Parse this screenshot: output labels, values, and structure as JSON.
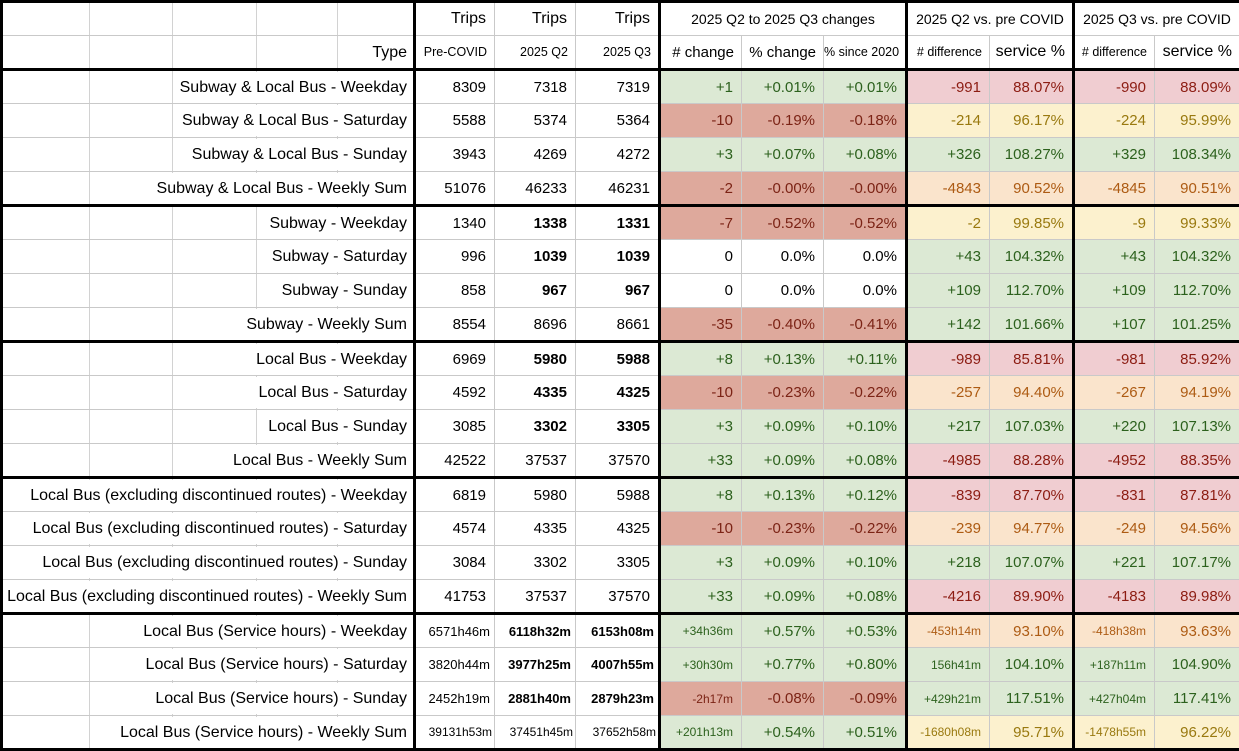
{
  "header": {
    "trips": "Trips",
    "type": "Type",
    "group_change": "2025 Q2 to 2025 Q3 changes",
    "group_q2_pre": "2025 Q2 vs. pre COVID",
    "group_q3_pre": "2025 Q3 vs. pre COVID",
    "sub": [
      "Pre-COVID",
      "2025 Q2",
      "2025 Q3",
      "# change",
      "% change",
      "% since 2020",
      "# difference",
      "service %",
      "# difference",
      "service %"
    ]
  },
  "colors": {
    "positive_bg": "#dce9d4",
    "positive_text": "#2c611d",
    "negative_bg": "#dea99c",
    "negative_text": "#7b2315",
    "below90_bg": "#f0cdd1",
    "below90_text": "#8c1c12",
    "near95_bg": "#fae4cc",
    "near95_text": "#ad5b13",
    "near100_bg": "#fcf1ce",
    "near100_text": "#99790f",
    "gridline": "#c9c9c9",
    "group_border": "#000000"
  },
  "rows": [
    {
      "label": "Subway & Local Bus - Weekday",
      "pre": "8309",
      "q2": "7318",
      "q3": "7319",
      "bold": false,
      "hours": false,
      "sum": false,
      "chg": [
        "+1",
        "+0.01%",
        "+0.01%"
      ],
      "chgc": "green",
      "d2": [
        "-991",
        "88.07%"
      ],
      "d2c": "pink",
      "d3": [
        "-990",
        "88.09%"
      ],
      "d3c": "pink"
    },
    {
      "label": "Subway & Local Bus - Saturday",
      "pre": "5588",
      "q2": "5374",
      "q3": "5364",
      "bold": false,
      "hours": false,
      "sum": false,
      "chg": [
        "-10",
        "-0.19%",
        "-0.18%"
      ],
      "chgc": "salmon",
      "d2": [
        "-214",
        "96.17%"
      ],
      "d2c": "yellow",
      "d3": [
        "-224",
        "95.99%"
      ],
      "d3c": "yellow"
    },
    {
      "label": "Subway & Local Bus - Sunday",
      "pre": "3943",
      "q2": "4269",
      "q3": "4272",
      "bold": false,
      "hours": false,
      "sum": false,
      "chg": [
        "+3",
        "+0.07%",
        "+0.08%"
      ],
      "chgc": "green",
      "d2": [
        "+326",
        "108.27%"
      ],
      "d2c": "green",
      "d3": [
        "+329",
        "108.34%"
      ],
      "d3c": "green"
    },
    {
      "label": "Subway & Local Bus - Weekly Sum",
      "pre": "51076",
      "q2": "46233",
      "q3": "46231",
      "bold": false,
      "hours": false,
      "sum": false,
      "chg": [
        "-2",
        "-0.00%",
        "-0.00%"
      ],
      "chgc": "salmon",
      "d2": [
        "-4843",
        "90.52%"
      ],
      "d2c": "orange",
      "d3": [
        "-4845",
        "90.51%"
      ],
      "d3c": "orange"
    },
    {
      "label": "Subway - Weekday",
      "pre": "1340",
      "q2": "1338",
      "q3": "1331",
      "bold": true,
      "hours": false,
      "sum": false,
      "chg": [
        "-7",
        "-0.52%",
        "-0.52%"
      ],
      "chgc": "salmon",
      "d2": [
        "-2",
        "99.85%"
      ],
      "d2c": "yellow",
      "d3": [
        "-9",
        "99.33%"
      ],
      "d3c": "yellow"
    },
    {
      "label": "Subway - Saturday",
      "pre": "996",
      "q2": "1039",
      "q3": "1039",
      "bold": true,
      "hours": false,
      "sum": false,
      "chg": [
        "0",
        "0.0%",
        "0.0%"
      ],
      "chgc": "plain",
      "d2": [
        "+43",
        "104.32%"
      ],
      "d2c": "green",
      "d3": [
        "+43",
        "104.32%"
      ],
      "d3c": "green"
    },
    {
      "label": "Subway - Sunday",
      "pre": "858",
      "q2": "967",
      "q3": "967",
      "bold": true,
      "hours": false,
      "sum": false,
      "chg": [
        "0",
        "0.0%",
        "0.0%"
      ],
      "chgc": "plain",
      "d2": [
        "+109",
        "112.70%"
      ],
      "d2c": "green",
      "d3": [
        "+109",
        "112.70%"
      ],
      "d3c": "green"
    },
    {
      "label": "Subway - Weekly Sum",
      "pre": "8554",
      "q2": "8696",
      "q3": "8661",
      "bold": false,
      "hours": false,
      "sum": false,
      "chg": [
        "-35",
        "-0.40%",
        "-0.41%"
      ],
      "chgc": "salmon",
      "d2": [
        "+142",
        "101.66%"
      ],
      "d2c": "green",
      "d3": [
        "+107",
        "101.25%"
      ],
      "d3c": "green"
    },
    {
      "label": "Local Bus - Weekday",
      "pre": "6969",
      "q2": "5980",
      "q3": "5988",
      "bold": true,
      "hours": false,
      "sum": false,
      "chg": [
        "+8",
        "+0.13%",
        "+0.11%"
      ],
      "chgc": "green",
      "d2": [
        "-989",
        "85.81%"
      ],
      "d2c": "pink",
      "d3": [
        "-981",
        "85.92%"
      ],
      "d3c": "pink"
    },
    {
      "label": "Local Bus - Saturday",
      "pre": "4592",
      "q2": "4335",
      "q3": "4325",
      "bold": true,
      "hours": false,
      "sum": false,
      "chg": [
        "-10",
        "-0.23%",
        "-0.22%"
      ],
      "chgc": "salmon",
      "d2": [
        "-257",
        "94.40%"
      ],
      "d2c": "orange",
      "d3": [
        "-267",
        "94.19%"
      ],
      "d3c": "orange"
    },
    {
      "label": "Local Bus - Sunday",
      "pre": "3085",
      "q2": "3302",
      "q3": "3305",
      "bold": true,
      "hours": false,
      "sum": false,
      "chg": [
        "+3",
        "+0.09%",
        "+0.10%"
      ],
      "chgc": "green",
      "d2": [
        "+217",
        "107.03%"
      ],
      "d2c": "green",
      "d3": [
        "+220",
        "107.13%"
      ],
      "d3c": "green"
    },
    {
      "label": "Local Bus - Weekly Sum",
      "pre": "42522",
      "q2": "37537",
      "q3": "37570",
      "bold": false,
      "hours": false,
      "sum": false,
      "chg": [
        "+33",
        "+0.09%",
        "+0.08%"
      ],
      "chgc": "green",
      "d2": [
        "-4985",
        "88.28%"
      ],
      "d2c": "pink",
      "d3": [
        "-4952",
        "88.35%"
      ],
      "d3c": "pink"
    },
    {
      "label": "Local Bus (excluding discontinued routes) - Weekday",
      "pre": "6819",
      "q2": "5980",
      "q3": "5988",
      "bold": false,
      "hours": false,
      "sum": false,
      "chg": [
        "+8",
        "+0.13%",
        "+0.12%"
      ],
      "chgc": "green",
      "d2": [
        "-839",
        "87.70%"
      ],
      "d2c": "pink",
      "d3": [
        "-831",
        "87.81%"
      ],
      "d3c": "pink"
    },
    {
      "label": "Local Bus (excluding discontinued routes) - Saturday",
      "pre": "4574",
      "q2": "4335",
      "q3": "4325",
      "bold": false,
      "hours": false,
      "sum": false,
      "chg": [
        "-10",
        "-0.23%",
        "-0.22%"
      ],
      "chgc": "salmon",
      "d2": [
        "-239",
        "94.77%"
      ],
      "d2c": "orange",
      "d3": [
        "-249",
        "94.56%"
      ],
      "d3c": "orange"
    },
    {
      "label": "Local Bus (excluding discontinued routes) - Sunday",
      "pre": "3084",
      "q2": "3302",
      "q3": "3305",
      "bold": false,
      "hours": false,
      "sum": false,
      "chg": [
        "+3",
        "+0.09%",
        "+0.10%"
      ],
      "chgc": "green",
      "d2": [
        "+218",
        "107.07%"
      ],
      "d2c": "green",
      "d3": [
        "+221",
        "107.17%"
      ],
      "d3c": "green"
    },
    {
      "label": "Local Bus (excluding discontinued routes) - Weekly Sum",
      "pre": "41753",
      "q2": "37537",
      "q3": "37570",
      "bold": false,
      "hours": false,
      "sum": false,
      "chg": [
        "+33",
        "+0.09%",
        "+0.08%"
      ],
      "chgc": "green",
      "d2": [
        "-4216",
        "89.90%"
      ],
      "d2c": "pink",
      "d3": [
        "-4183",
        "89.98%"
      ],
      "d3c": "pink"
    },
    {
      "label": "Local Bus (Service hours) - Weekday",
      "pre": "6571h46m",
      "q2": "6118h32m",
      "q3": "6153h08m",
      "bold": true,
      "hours": true,
      "sum": false,
      "chg": [
        "+34h36m",
        "+0.57%",
        "+0.53%"
      ],
      "chgc": "green",
      "d2": [
        "-453h14m",
        "93.10%"
      ],
      "d2c": "orange",
      "d3": [
        "-418h38m",
        "93.63%"
      ],
      "d3c": "orange"
    },
    {
      "label": "Local Bus (Service hours) - Saturday",
      "pre": "3820h44m",
      "q2": "3977h25m",
      "q3": "4007h55m",
      "bold": true,
      "hours": true,
      "sum": false,
      "chg": [
        "+30h30m",
        "+0.77%",
        "+0.80%"
      ],
      "chgc": "green",
      "d2": [
        "156h41m",
        "104.10%"
      ],
      "d2c": "green",
      "d3": [
        "+187h11m",
        "104.90%"
      ],
      "d3c": "green"
    },
    {
      "label": "Local Bus (Service hours) - Sunday",
      "pre": "2452h19m",
      "q2": "2881h40m",
      "q3": "2879h23m",
      "bold": true,
      "hours": true,
      "sum": false,
      "chg": [
        "-2h17m",
        "-0.08%",
        "-0.09%"
      ],
      "chgc": "salmon",
      "d2": [
        "+429h21m",
        "117.51%"
      ],
      "d2c": "green",
      "d3": [
        "+427h04m",
        "117.41%"
      ],
      "d3c": "green"
    },
    {
      "label": "Local Bus (Service hours) - Weekly Sum",
      "pre": "39131h53m",
      "q2": "37451h45m",
      "q3": "37652h58m",
      "bold": false,
      "hours": true,
      "sum": true,
      "chg": [
        "+201h13m",
        "+0.54%",
        "+0.51%"
      ],
      "chgc": "green",
      "d2": [
        "-1680h08m",
        "95.71%"
      ],
      "d2c": "yellow",
      "d3": [
        "-1478h55m",
        "96.22%"
      ],
      "d3c": "yellow"
    }
  ]
}
